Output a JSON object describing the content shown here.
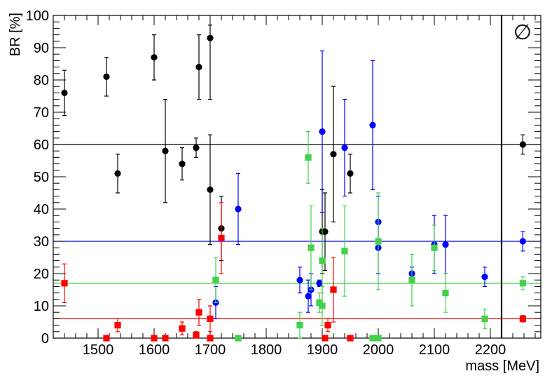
{
  "chart_data": {
    "type": "scatter",
    "title": "",
    "xlabel": "mass [MeV]",
    "ylabel": "BR [%]",
    "xlim": [
      1420,
      2290
    ],
    "ylim": [
      0,
      100
    ],
    "x_ticks": [
      1500,
      1600,
      1700,
      1800,
      1900,
      2000,
      2100,
      2200
    ],
    "y_ticks": [
      0,
      10,
      20,
      30,
      40,
      50,
      60,
      70,
      80,
      90,
      100
    ],
    "divider_x": 2220,
    "panel_symbol": "∅",
    "averages_column_x": 2258,
    "grid": false,
    "legend": "none",
    "series": [
      {
        "color": "#000000",
        "marker": "circle",
        "mean_line": 60,
        "points": [
          {
            "x": 1440,
            "y": 76,
            "lo": 69,
            "hi": 83
          },
          {
            "x": 1515,
            "y": 81,
            "lo": 75,
            "hi": 87
          },
          {
            "x": 1535,
            "y": 51,
            "lo": 45,
            "hi": 57
          },
          {
            "x": 1600,
            "y": 87,
            "lo": 80,
            "hi": 94
          },
          {
            "x": 1620,
            "y": 58,
            "lo": 42,
            "hi": 74
          },
          {
            "x": 1650,
            "y": 54,
            "lo": 49,
            "hi": 59
          },
          {
            "x": 1675,
            "y": 59,
            "lo": 56,
            "hi": 62
          },
          {
            "x": 1680,
            "y": 84,
            "lo": 74,
            "hi": 94
          },
          {
            "x": 1700,
            "y": 93,
            "lo": 74,
            "hi": 97
          },
          {
            "x": 1700,
            "y": 46,
            "lo": 29,
            "hi": 63
          },
          {
            "x": 1720,
            "y": 34,
            "lo": 24,
            "hi": 44
          },
          {
            "x": 1900,
            "y": 33,
            "lo": 20,
            "hi": 46
          },
          {
            "x": 1905,
            "y": 33,
            "lo": 21,
            "hi": 45
          },
          {
            "x": 1920,
            "y": 57,
            "lo": 36,
            "hi": 78
          },
          {
            "x": 1950,
            "y": 51,
            "lo": 45,
            "hi": 57
          },
          {
            "x": 2258,
            "y": 60,
            "lo": 57,
            "hi": 63
          }
        ]
      },
      {
        "color": "#0000ff",
        "marker": "circle",
        "mean_line": 30,
        "points": [
          {
            "x": 1710,
            "y": 11,
            "lo": 6,
            "hi": 16
          },
          {
            "x": 1750,
            "y": 40,
            "lo": 29,
            "hi": 51
          },
          {
            "x": 1860,
            "y": 18,
            "lo": 14,
            "hi": 22
          },
          {
            "x": 1875,
            "y": 13,
            "lo": 8,
            "hi": 18
          },
          {
            "x": 1880,
            "y": 15,
            "lo": 10,
            "hi": 20
          },
          {
            "x": 1895,
            "y": 17,
            "lo": 16,
            "hi": 18
          },
          {
            "x": 1900,
            "y": 64,
            "lo": 39,
            "hi": 89
          },
          {
            "x": 1940,
            "y": 59,
            "lo": 44,
            "hi": 74
          },
          {
            "x": 1990,
            "y": 66,
            "lo": 46,
            "hi": 86
          },
          {
            "x": 2000,
            "y": 36,
            "lo": 28,
            "hi": 44
          },
          {
            "x": 2000,
            "y": 28,
            "lo": 20,
            "hi": 36
          },
          {
            "x": 2060,
            "y": 20,
            "lo": 18,
            "hi": 22
          },
          {
            "x": 2100,
            "y": 29,
            "lo": 20,
            "hi": 38
          },
          {
            "x": 2120,
            "y": 29,
            "lo": 20,
            "hi": 38
          },
          {
            "x": 2190,
            "y": 19,
            "lo": 16,
            "hi": 22
          },
          {
            "x": 2258,
            "y": 30,
            "lo": 27,
            "hi": 33
          }
        ]
      },
      {
        "color": "#44d04a",
        "marker": "square",
        "mean_line": 17,
        "points": [
          {
            "x": 1710,
            "y": 18,
            "lo": 11,
            "hi": 25
          },
          {
            "x": 1750,
            "y": 0,
            "lo": 0,
            "hi": 0
          },
          {
            "x": 1860,
            "y": 4,
            "lo": 0,
            "hi": 8
          },
          {
            "x": 1875,
            "y": 56,
            "lo": 48,
            "hi": 64
          },
          {
            "x": 1880,
            "y": 28,
            "lo": 15,
            "hi": 41
          },
          {
            "x": 1895,
            "y": 11,
            "lo": 8,
            "hi": 14
          },
          {
            "x": 1900,
            "y": 24,
            "lo": 14,
            "hi": 34
          },
          {
            "x": 1900,
            "y": 10,
            "lo": 4,
            "hi": 16
          },
          {
            "x": 1940,
            "y": 27,
            "lo": 13,
            "hi": 41
          },
          {
            "x": 1990,
            "y": 0,
            "lo": 0,
            "hi": 0
          },
          {
            "x": 2000,
            "y": 0,
            "lo": 0,
            "hi": 0
          },
          {
            "x": 2000,
            "y": 30,
            "lo": 15,
            "hi": 45
          },
          {
            "x": 2060,
            "y": 18,
            "lo": 10,
            "hi": 26
          },
          {
            "x": 2100,
            "y": 28,
            "lo": 21,
            "hi": 35
          },
          {
            "x": 2120,
            "y": 14,
            "lo": 8,
            "hi": 20
          },
          {
            "x": 2190,
            "y": 6,
            "lo": 3,
            "hi": 9
          },
          {
            "x": 2258,
            "y": 17,
            "lo": 15,
            "hi": 19
          }
        ]
      },
      {
        "color": "#ff0000",
        "marker": "square",
        "mean_line": 6,
        "points": [
          {
            "x": 1440,
            "y": 17,
            "lo": 11,
            "hi": 23
          },
          {
            "x": 1515,
            "y": 0,
            "lo": 0,
            "hi": 0
          },
          {
            "x": 1535,
            "y": 4,
            "lo": 2,
            "hi": 6
          },
          {
            "x": 1600,
            "y": 0,
            "lo": 0,
            "hi": 0
          },
          {
            "x": 1620,
            "y": 0,
            "lo": 0,
            "hi": 0
          },
          {
            "x": 1650,
            "y": 3,
            "lo": 1,
            "hi": 5
          },
          {
            "x": 1675,
            "y": 1,
            "lo": 0,
            "hi": 2
          },
          {
            "x": 1680,
            "y": 8,
            "lo": 4,
            "hi": 12
          },
          {
            "x": 1700,
            "y": 6,
            "lo": 2,
            "hi": 10
          },
          {
            "x": 1700,
            "y": 0,
            "lo": 0,
            "hi": 0
          },
          {
            "x": 1720,
            "y": 31,
            "lo": 20,
            "hi": 42
          },
          {
            "x": 1905,
            "y": 0,
            "lo": 0,
            "hi": 0
          },
          {
            "x": 1910,
            "y": 4,
            "lo": 2,
            "hi": 6
          },
          {
            "x": 1920,
            "y": 15,
            "lo": 5,
            "hi": 25
          },
          {
            "x": 1950,
            "y": 0,
            "lo": 0,
            "hi": 0
          },
          {
            "x": 2258,
            "y": 6,
            "lo": 5,
            "hi": 7
          }
        ]
      }
    ]
  }
}
